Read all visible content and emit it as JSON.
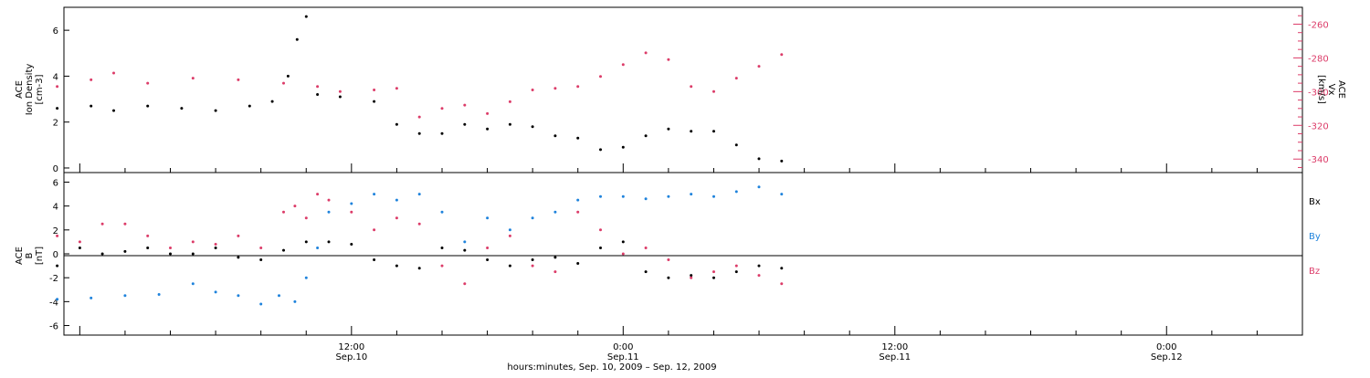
{
  "chart_data": [
    {
      "type": "scatter",
      "panel": "top",
      "ylabel_left": [
        "ACE",
        "Ion Density",
        "[cm-3]"
      ],
      "ylabel_right": [
        "ACE",
        "Vx",
        "[km/s]"
      ],
      "y_left_ticks": [
        "0",
        "2",
        "4",
        "6"
      ],
      "y_left_range": [
        -0.2,
        7
      ],
      "y_right_ticks": [
        "-260",
        "-280",
        "-300",
        "-320",
        "-340"
      ],
      "y_right_range": [
        -348,
        -250
      ],
      "time_range_hours": [
        -1,
        31
      ],
      "series": [
        {
          "name": "",
          "axis": "left",
          "color": "#000000",
          "points": [
            [
              -1,
              2.6
            ],
            [
              0.5,
              2.7
            ],
            [
              1.5,
              2.5
            ],
            [
              3,
              2.7
            ],
            [
              4.5,
              2.6
            ],
            [
              6,
              2.5
            ],
            [
              7.5,
              2.7
            ],
            [
              8.5,
              2.9
            ],
            [
              9.2,
              4.0
            ],
            [
              9.6,
              5.6
            ],
            [
              10.0,
              6.6
            ],
            [
              10.5,
              3.2
            ],
            [
              11.5,
              3.1
            ],
            [
              13,
              2.9
            ],
            [
              14,
              1.9
            ],
            [
              15,
              1.5
            ],
            [
              16,
              1.5
            ],
            [
              17,
              1.9
            ],
            [
              18,
              1.7
            ],
            [
              19,
              1.9
            ],
            [
              20,
              1.8
            ],
            [
              21,
              1.4
            ],
            [
              22,
              1.3
            ],
            [
              23,
              0.8
            ],
            [
              24,
              0.9
            ],
            [
              25,
              1.4
            ],
            [
              26,
              1.7
            ],
            [
              27,
              1.6
            ],
            [
              28,
              1.6
            ],
            [
              29,
              1.0
            ],
            [
              30,
              0.4
            ],
            [
              31,
              0.3
            ]
          ]
        },
        {
          "name": "",
          "axis": "right",
          "color": "#dc3c69",
          "points": [
            [
              -1,
              -297
            ],
            [
              0.5,
              -293
            ],
            [
              1.5,
              -289
            ],
            [
              3,
              -295
            ],
            [
              5,
              -292
            ],
            [
              7,
              -293
            ],
            [
              9,
              -295
            ],
            [
              10.5,
              -297
            ],
            [
              11.5,
              -300
            ],
            [
              13,
              -299
            ],
            [
              14,
              -298
            ],
            [
              15,
              -315
            ],
            [
              16,
              -310
            ],
            [
              17,
              -308
            ],
            [
              18,
              -313
            ],
            [
              19,
              -306
            ],
            [
              20,
              -299
            ],
            [
              21,
              -298
            ],
            [
              22,
              -297
            ],
            [
              23,
              -291
            ],
            [
              24,
              -284
            ],
            [
              25,
              -277
            ],
            [
              26,
              -281
            ],
            [
              27,
              -297
            ],
            [
              28,
              -300
            ],
            [
              29,
              -292
            ],
            [
              30,
              -285
            ],
            [
              31,
              -278
            ]
          ]
        }
      ]
    },
    {
      "type": "scatter",
      "panel": "bottom",
      "ylabel_left": [
        "ACE",
        "B",
        "[nT]"
      ],
      "y_ticks": [
        "-6",
        "-4",
        "-2",
        "0",
        "2",
        "4",
        "6"
      ],
      "y_range": [
        -6.8,
        6.8
      ],
      "time_range_hours": [
        -1,
        31
      ],
      "series": [
        {
          "name": "Bx",
          "color": "#000000",
          "points": [
            [
              -1,
              -1.0
            ],
            [
              0,
              0.5
            ],
            [
              1,
              0.0
            ],
            [
              2,
              0.2
            ],
            [
              3,
              0.5
            ],
            [
              4,
              0.0
            ],
            [
              5,
              0.0
            ],
            [
              6,
              0.5
            ],
            [
              7,
              -0.3
            ],
            [
              8,
              -0.5
            ],
            [
              9,
              0.3
            ],
            [
              10,
              1.0
            ],
            [
              11,
              1.0
            ],
            [
              12,
              0.8
            ],
            [
              13,
              -0.5
            ],
            [
              14,
              -1.0
            ],
            [
              15,
              -1.2
            ],
            [
              16,
              0.5
            ],
            [
              17,
              0.3
            ],
            [
              18,
              -0.5
            ],
            [
              19,
              -1.0
            ],
            [
              20,
              -0.5
            ],
            [
              21,
              -0.3
            ],
            [
              22,
              -0.8
            ],
            [
              23,
              0.5
            ],
            [
              24,
              1.0
            ],
            [
              25,
              -1.5
            ],
            [
              26,
              -2.0
            ],
            [
              27,
              -1.8
            ],
            [
              28,
              -2.0
            ],
            [
              29,
              -1.5
            ],
            [
              30,
              -1.0
            ],
            [
              31,
              -1.2
            ]
          ]
        },
        {
          "name": "By",
          "color": "#1f83dc",
          "points": [
            [
              -1,
              -3.8
            ],
            [
              0.5,
              -3.7
            ],
            [
              2,
              -3.5
            ],
            [
              3.5,
              -3.4
            ],
            [
              5,
              -2.5
            ],
            [
              6,
              -3.2
            ],
            [
              7,
              -3.5
            ],
            [
              8,
              -4.2
            ],
            [
              8.8,
              -3.5
            ],
            [
              9.5,
              -4.0
            ],
            [
              10,
              -2.0
            ],
            [
              10.5,
              0.5
            ],
            [
              11,
              3.5
            ],
            [
              12,
              4.2
            ],
            [
              13,
              5.0
            ],
            [
              14,
              4.5
            ],
            [
              15,
              5.0
            ],
            [
              16,
              3.5
            ],
            [
              17,
              1.0
            ],
            [
              18,
              3.0
            ],
            [
              19,
              2.0
            ],
            [
              20,
              3.0
            ],
            [
              21,
              3.5
            ],
            [
              22,
              4.5
            ],
            [
              23,
              4.8
            ],
            [
              24,
              4.8
            ],
            [
              25,
              4.6
            ],
            [
              26,
              4.8
            ],
            [
              27,
              5.0
            ],
            [
              28,
              4.8
            ],
            [
              29,
              5.2
            ],
            [
              30,
              5.6
            ],
            [
              31,
              5.0
            ]
          ]
        },
        {
          "name": "Bz",
          "color": "#dc3c69",
          "points": [
            [
              -1,
              1.5
            ],
            [
              0,
              1.0
            ],
            [
              1,
              2.5
            ],
            [
              2,
              2.5
            ],
            [
              3,
              1.5
            ],
            [
              4,
              0.5
            ],
            [
              5,
              1.0
            ],
            [
              6,
              0.8
            ],
            [
              7,
              1.5
            ],
            [
              8,
              0.5
            ],
            [
              9,
              3.5
            ],
            [
              9.5,
              4.0
            ],
            [
              10,
              3.0
            ],
            [
              10.5,
              5.0
            ],
            [
              11,
              4.5
            ],
            [
              12,
              3.5
            ],
            [
              13,
              2.0
            ],
            [
              14,
              3.0
            ],
            [
              15,
              2.5
            ],
            [
              16,
              -1.0
            ],
            [
              17,
              -2.5
            ],
            [
              18,
              0.5
            ],
            [
              19,
              1.5
            ],
            [
              20,
              -1.0
            ],
            [
              21,
              -1.5
            ],
            [
              22,
              3.5
            ],
            [
              23,
              2.0
            ],
            [
              24,
              0.0
            ],
            [
              25,
              0.5
            ],
            [
              26,
              -0.5
            ],
            [
              27,
              -2.0
            ],
            [
              28,
              -1.5
            ],
            [
              29,
              -1.0
            ],
            [
              30,
              -1.8
            ],
            [
              31,
              -2.5
            ]
          ]
        }
      ]
    }
  ],
  "x_axis": {
    "tick_labels": [
      {
        "hour": 12,
        "time": "12:00",
        "date": "Sep.10"
      },
      {
        "hour": 24,
        "time": "0:00",
        "date": "Sep.11"
      },
      {
        "hour": 36,
        "time": "12:00",
        "date": "Sep.11"
      },
      {
        "hour": 48,
        "time": "0:00",
        "date": "Sep.12"
      }
    ],
    "range_hours": [
      -0.7,
      54
    ],
    "xlabel": "hours:minutes, Sep. 10, 2009 – Sep. 12, 2009"
  },
  "legend": [
    {
      "label": "Bx",
      "color": "#000000"
    },
    {
      "label": "By",
      "color": "#1f83dc"
    },
    {
      "label": "Bz",
      "color": "#dc3c69"
    }
  ]
}
